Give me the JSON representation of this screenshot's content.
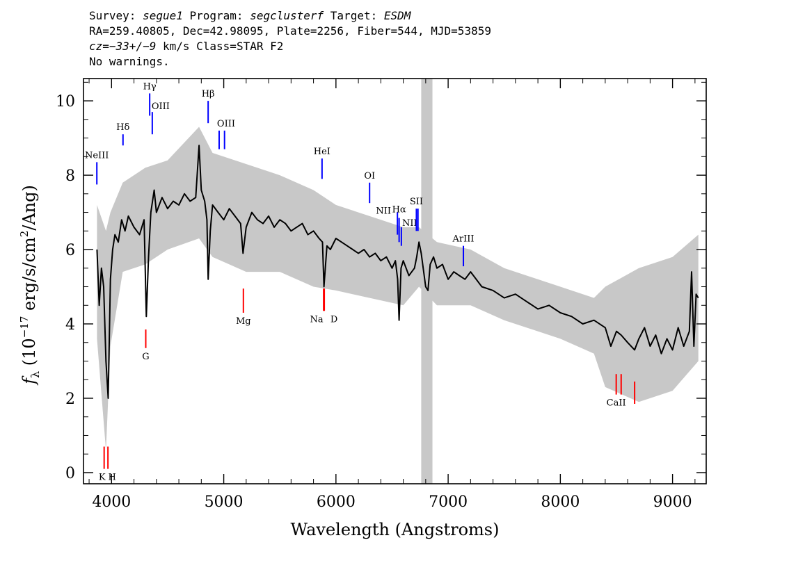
{
  "header": {
    "survey_label": "Survey: ",
    "survey": "segue1",
    "program_label": " Program: ",
    "program": "segclusterf",
    "target_label": " Target: ",
    "target": "ESDM",
    "line2": "RA=259.40805, Dec=42.98095, Plate=2256, Fiber=544, MJD=53859",
    "cz_label": "cz=",
    "cz_value": "−33+/−9",
    "line3_rest": " km/s Class=STAR F2",
    "line4": "No warnings."
  },
  "chart_data": {
    "type": "line",
    "title": "",
    "xlabel": "Wavelength (Angstroms)",
    "ylabel_symbol": "f",
    "ylabel_sub": "λ",
    "ylabel_open": " (10",
    "ylabel_exp1": "−17",
    "ylabel_mid": " erg/s/cm",
    "ylabel_exp2": "2",
    "ylabel_close": "/Ang)",
    "xlim": [
      3750,
      9300
    ],
    "ylim": [
      -0.3,
      10.6
    ],
    "xticks": [
      4000,
      5000,
      6000,
      7000,
      8000,
      9000
    ],
    "yticks": [
      0,
      2,
      4,
      6,
      8,
      10
    ],
    "grid": false,
    "masked_region": [
      6760,
      6860
    ],
    "colors": {
      "flux": "#000000",
      "error_band": "#c8c8c8",
      "emission": "#0000ff",
      "absorption": "#ff0000",
      "mask": "#c8c8c8"
    },
    "series": [
      {
        "role": "smoothed_flux",
        "x": [
          3870,
          3890,
          3910,
          3930,
          3950,
          3970,
          3990,
          4010,
          4030,
          4060,
          4090,
          4120,
          4150,
          4200,
          4250,
          4290,
          4310,
          4330,
          4350,
          4380,
          4400,
          4450,
          4500,
          4550,
          4600,
          4650,
          4700,
          4750,
          4780,
          4800,
          4830,
          4850,
          4861,
          4880,
          4900,
          4950,
          5000,
          5050,
          5100,
          5150,
          5172,
          5200,
          5250,
          5300,
          5350,
          5400,
          5450,
          5500,
          5550,
          5600,
          5650,
          5700,
          5750,
          5800,
          5850,
          5880,
          5893,
          5920,
          5950,
          6000,
          6050,
          6100,
          6150,
          6200,
          6250,
          6300,
          6350,
          6400,
          6450,
          6500,
          6530,
          6550,
          6563,
          6580,
          6600,
          6650,
          6700,
          6720,
          6740,
          6760,
          6800,
          6820,
          6840,
          6870,
          6900,
          6950,
          7000,
          7050,
          7100,
          7150,
          7200,
          7300,
          7400,
          7500,
          7600,
          7700,
          7800,
          7900,
          8000,
          8100,
          8200,
          8300,
          8400,
          8450,
          8500,
          8542,
          8600,
          8662,
          8700,
          8750,
          8800,
          8850,
          8900,
          8950,
          9000,
          9050,
          9100,
          9150,
          9170,
          9190,
          9210,
          9230
        ],
        "y": [
          6.0,
          4.5,
          5.5,
          5.0,
          3.0,
          2.0,
          5.2,
          6.0,
          6.4,
          6.2,
          6.8,
          6.5,
          6.9,
          6.6,
          6.4,
          6.8,
          4.2,
          5.8,
          7.0,
          7.6,
          7.0,
          7.4,
          7.1,
          7.3,
          7.2,
          7.5,
          7.3,
          7.4,
          8.8,
          7.6,
          7.3,
          6.8,
          5.2,
          6.5,
          7.2,
          7.0,
          6.8,
          7.1,
          6.9,
          6.7,
          5.9,
          6.6,
          7.0,
          6.8,
          6.7,
          6.9,
          6.6,
          6.8,
          6.7,
          6.5,
          6.6,
          6.7,
          6.4,
          6.5,
          6.3,
          6.2,
          5.0,
          6.1,
          6.0,
          6.3,
          6.2,
          6.1,
          6.0,
          5.9,
          6.0,
          5.8,
          5.9,
          5.7,
          5.8,
          5.5,
          5.7,
          5.2,
          4.1,
          5.5,
          5.7,
          5.3,
          5.5,
          5.8,
          6.2,
          5.9,
          5.0,
          4.9,
          5.6,
          5.8,
          5.5,
          5.6,
          5.2,
          5.4,
          5.3,
          5.2,
          5.4,
          5.0,
          4.9,
          4.7,
          4.8,
          4.6,
          4.4,
          4.5,
          4.3,
          4.2,
          4.0,
          4.1,
          3.9,
          3.4,
          3.8,
          3.7,
          3.5,
          3.3,
          3.6,
          3.9,
          3.4,
          3.7,
          3.2,
          3.6,
          3.3,
          3.9,
          3.4,
          3.8,
          5.4,
          3.4,
          4.8,
          4.7
        ]
      },
      {
        "role": "error_band",
        "x": [
          3870,
          3950,
          3990,
          4100,
          4300,
          4500,
          4780,
          4900,
          5200,
          5500,
          5800,
          6000,
          6300,
          6600,
          6740,
          6900,
          7200,
          7500,
          8000,
          8300,
          8400,
          8700,
          9000,
          9230
        ],
        "y_upper": [
          7.2,
          6.5,
          7.0,
          7.8,
          8.2,
          8.4,
          9.3,
          8.6,
          8.3,
          8.0,
          7.6,
          7.2,
          6.9,
          6.6,
          6.6,
          6.2,
          6.0,
          5.5,
          5.0,
          4.7,
          5.0,
          5.5,
          5.8,
          6.4
        ],
        "y_lower": [
          3.6,
          0.6,
          3.4,
          5.4,
          5.6,
          6.0,
          6.3,
          5.8,
          5.4,
          5.4,
          5.0,
          4.9,
          4.7,
          4.5,
          5.0,
          4.5,
          4.5,
          4.1,
          3.6,
          3.2,
          2.3,
          1.9,
          2.2,
          3.0
        ]
      }
    ],
    "emission_lines": [
      {
        "label": "NeIII",
        "x": 3869,
        "y0": 7.75,
        "y1": 8.35
      },
      {
        "label": "Hδ",
        "x": 4102,
        "y0": 8.8,
        "y1": 9.1
      },
      {
        "label": "Hγ",
        "x": 4340,
        "y0": 9.6,
        "y1": 10.2
      },
      {
        "label": "OIII",
        "x": 4363,
        "y0": 9.1,
        "y1": 9.7
      },
      {
        "label": "Hβ",
        "x": 4861,
        "y0": 9.4,
        "y1": 10.0
      },
      {
        "label": "OIII",
        "x": 4959,
        "y0": 8.7,
        "y1": 9.2
      },
      {
        "label": "",
        "x": 5007,
        "y0": 8.7,
        "y1": 9.2
      },
      {
        "label": "HeI",
        "x": 5876,
        "y0": 7.9,
        "y1": 8.45
      },
      {
        "label": "OI",
        "x": 6300,
        "y0": 7.25,
        "y1": 7.8
      },
      {
        "label": "NII",
        "x": 6548,
        "y0": 6.4,
        "y1": 7.0
      },
      {
        "label": "Hα",
        "x": 6563,
        "y0": 6.2,
        "y1": 6.85
      },
      {
        "label": "NII",
        "x": 6583,
        "y0": 6.1,
        "y1": 6.6
      },
      {
        "label": "SII",
        "x": 6717,
        "y0": 6.5,
        "y1": 7.1
      },
      {
        "label": "",
        "x": 6731,
        "y0": 6.5,
        "y1": 7.1
      },
      {
        "label": "ArIII",
        "x": 7136,
        "y0": 5.55,
        "y1": 6.1
      }
    ],
    "absorption_lines": [
      {
        "label": "K",
        "x": 3934,
        "y0": 0.1,
        "y1": 0.7
      },
      {
        "label": "H",
        "x": 3968,
        "y0": 0.1,
        "y1": 0.7
      },
      {
        "label": "G",
        "x": 4305,
        "y0": 3.35,
        "y1": 3.85
      },
      {
        "label": "Mg",
        "x": 5175,
        "y0": 4.3,
        "y1": 4.95
      },
      {
        "label": "Na",
        "x": 5890,
        "y0": 4.35,
        "y1": 4.95
      },
      {
        "label": "D",
        "x": 5896,
        "y0": 4.35,
        "y1": 4.95
      },
      {
        "label": "CaII",
        "x": 8498,
        "y0": 2.1,
        "y1": 2.65
      },
      {
        "label": "",
        "x": 8542,
        "y0": 2.1,
        "y1": 2.65
      },
      {
        "label": "",
        "x": 8662,
        "y0": 1.85,
        "y1": 2.45
      }
    ]
  }
}
